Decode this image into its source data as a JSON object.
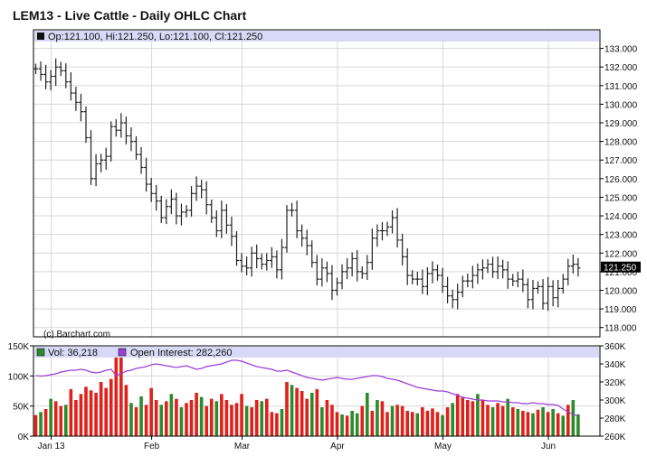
{
  "colors": {
    "price_bar": "#222222",
    "up_volume": "#2d8a2d",
    "down_volume": "#e0201a",
    "open_interest": "#9b3fd6",
    "legend_band": "#d7d9f6",
    "grid": "#d8d8d8",
    "frame": "#000000"
  },
  "icons": {
    "volume_legend": "green-square-icon",
    "open_interest_legend": "purple-square-icon",
    "price_legend": "black-square-icon"
  },
  "chart_data": [
    {
      "type": "ohlc",
      "title": "LEM13 - Live Cattle - Daily OHLC Chart",
      "legend": {
        "ohlc_text": "Op:121.100, Hi:121.250, Lo:121.100, Cl:121.250",
        "placement": "top-left"
      },
      "watermark": "(c) Barchart.com",
      "last_price_label": "121.250",
      "last_price": 121.25,
      "ylim": [
        117.5,
        134
      ],
      "y_ticks": [
        "118.000",
        "119.000",
        "120.000",
        "121.000",
        "122.000",
        "123.000",
        "124.000",
        "125.000",
        "126.000",
        "127.000",
        "128.000",
        "129.000",
        "130.000",
        "131.000",
        "132.000",
        "133.000"
      ],
      "grid": true,
      "x_labels": [
        "Jan 13",
        "Feb",
        "Mar",
        "Apr",
        "May",
        "Jun"
      ],
      "x_label_index": [
        2,
        22,
        40,
        59,
        80,
        101
      ],
      "closes": [
        131.9,
        131.6,
        131.2,
        131.5,
        132.0,
        131.8,
        131.2,
        130.6,
        130.1,
        129.6,
        128.2,
        126.0,
        126.8,
        127.0,
        127.2,
        128.8,
        128.6,
        129.0,
        128.3,
        128.0,
        127.3,
        126.6,
        125.7,
        125.2,
        124.8,
        123.9,
        124.5,
        124.9,
        124.0,
        124.2,
        124.3,
        125.2,
        125.6,
        125.4,
        124.6,
        123.9,
        123.2,
        124.3,
        123.5,
        122.9,
        121.6,
        121.3,
        121.2,
        122.0,
        121.7,
        121.4,
        121.6,
        121.8,
        121.1,
        122.3,
        124.3,
        124.3,
        123.2,
        122.8,
        122.4,
        121.5,
        120.6,
        121.2,
        120.9,
        120.0,
        120.4,
        121.0,
        121.2,
        121.7,
        121.0,
        120.9,
        121.5,
        122.8,
        123.2,
        123.2,
        123.4,
        123.9,
        122.7,
        121.8,
        120.8,
        120.6,
        120.6,
        120.2,
        120.9,
        121.1,
        120.8,
        120.2,
        119.7,
        119.5,
        119.9,
        120.5,
        120.5,
        120.8,
        121.1,
        121.2,
        121.4,
        121.0,
        121.3,
        121.1,
        120.6,
        120.5,
        120.6,
        120.3,
        119.5,
        120.1,
        120.2,
        119.3,
        120.2,
        119.6,
        120.1,
        120.6,
        121.3,
        121.4,
        121.2
      ],
      "volume_ylim": [
        0,
        150000
      ],
      "volume_ticks": [
        "0K",
        "50K",
        "100K",
        "150K"
      ],
      "open_interest_ylim": [
        260000,
        360000
      ],
      "open_interest_ticks": [
        "260K",
        "280K",
        "300K",
        "320K",
        "340K",
        "360K"
      ],
      "volume_legend": "Vol: 36,218",
      "open_interest_legend": "Open Interest: 282,260",
      "volume": [
        35000,
        40000,
        45000,
        62000,
        58000,
        50000,
        52000,
        78000,
        60000,
        70000,
        82000,
        76000,
        72000,
        90000,
        80000,
        95000,
        142000,
        135000,
        85000,
        55000,
        48000,
        66000,
        52000,
        80000,
        60000,
        52000,
        58000,
        70000,
        62000,
        48000,
        55000,
        60000,
        72000,
        65000,
        50000,
        62000,
        58000,
        70000,
        60000,
        52000,
        55000,
        70000,
        50000,
        48000,
        60000,
        58000,
        62000,
        40000,
        38000,
        45000,
        90000,
        85000,
        80000,
        75000,
        62000,
        72000,
        78000,
        48000,
        60000,
        52000,
        40000,
        36000,
        34000,
        42000,
        38000,
        50000,
        72000,
        42000,
        60000,
        58000,
        40000,
        50000,
        52000,
        50000,
        42000,
        40000,
        38000,
        48000,
        42000,
        46000,
        40000,
        35000,
        48000,
        55000,
        70000,
        65000,
        60000,
        58000,
        70000,
        60000,
        52000,
        48000,
        55000,
        50000,
        62000,
        48000,
        45000,
        42000,
        40000,
        38000,
        44000,
        48000,
        40000,
        45000,
        38000,
        34000,
        52000,
        60000,
        36218
      ],
      "volume_up": [
        false,
        true,
        false,
        true,
        false,
        false,
        true,
        false,
        false,
        false,
        false,
        false,
        false,
        false,
        false,
        false,
        false,
        false,
        false,
        true,
        false,
        true,
        false,
        false,
        false,
        true,
        false,
        true,
        false,
        true,
        false,
        false,
        false,
        true,
        false,
        false,
        true,
        false,
        false,
        false,
        false,
        false,
        true,
        false,
        false,
        true,
        false,
        false,
        false,
        true,
        false,
        true,
        false,
        false,
        false,
        true,
        false,
        true,
        false,
        false,
        false,
        true,
        false,
        true,
        true,
        false,
        true,
        false,
        true,
        false,
        false,
        true,
        false,
        false,
        false,
        false,
        true,
        false,
        false,
        false,
        false,
        true,
        false,
        true,
        false,
        false,
        false,
        false,
        true,
        false,
        false,
        true,
        false,
        false,
        true,
        false,
        true,
        false,
        false,
        true,
        false,
        true,
        false,
        true,
        false,
        true,
        false,
        true,
        true
      ],
      "open_interest": [
        327000,
        326500,
        327000,
        328000,
        329000,
        331000,
        332000,
        333000,
        333000,
        334000,
        333000,
        331000,
        330000,
        331000,
        333000,
        334000,
        327000,
        329000,
        332000,
        333000,
        335000,
        336000,
        337000,
        339000,
        340000,
        339000,
        338000,
        337000,
        336000,
        337000,
        338000,
        336000,
        334000,
        335000,
        337000,
        338000,
        339000,
        340000,
        342000,
        344000,
        344000,
        343000,
        341000,
        339000,
        337000,
        336000,
        335000,
        334000,
        332000,
        332000,
        333000,
        331000,
        329000,
        327000,
        325000,
        324000,
        323000,
        322000,
        323000,
        324000,
        325000,
        324000,
        323000,
        323000,
        324000,
        325000,
        326000,
        327000,
        327000,
        326000,
        324000,
        323000,
        322000,
        320000,
        318000,
        316000,
        314000,
        313000,
        312000,
        311000,
        310000,
        310000,
        309000,
        307000,
        305000,
        303000,
        302000,
        301000,
        300000,
        300000,
        299000,
        299000,
        299000,
        298000,
        298000,
        297000,
        297000,
        296000,
        296000,
        297000,
        296000,
        296000,
        295000,
        295000,
        294000,
        290000,
        287000,
        284000,
        282260
      ]
    }
  ]
}
